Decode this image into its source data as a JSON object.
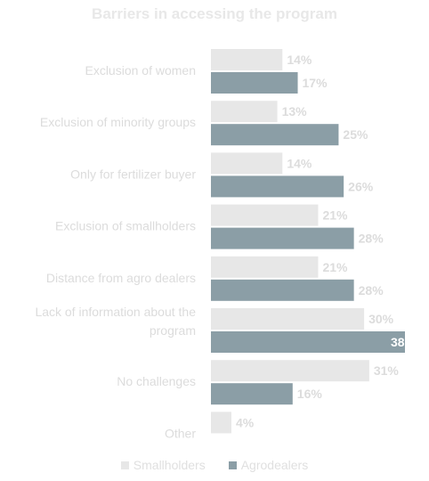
{
  "chart_data": {
    "type": "bar",
    "orientation": "horizontal",
    "title": "Barriers in accessing the program",
    "xlabel": "",
    "ylabel": "",
    "xlim": [
      0,
      38
    ],
    "grid": false,
    "legend_position": "bottom",
    "categories": [
      "Exclusion of women",
      "Exclusion of minority groups",
      "Only for fertilizer buyer",
      "Exclusion of smallholders",
      "Distance from agro dealers",
      "Lack of information about the program",
      "No challenges",
      "Other"
    ],
    "series": [
      {
        "name": "Smallholders",
        "color": "#e7e7e7",
        "values": [
          14,
          13,
          14,
          21,
          21,
          30,
          31,
          4
        ]
      },
      {
        "name": "Agrodealers",
        "color": "#8b9ea6",
        "values": [
          17,
          25,
          26,
          28,
          28,
          38,
          16,
          null
        ]
      }
    ],
    "value_suffix": "%"
  }
}
